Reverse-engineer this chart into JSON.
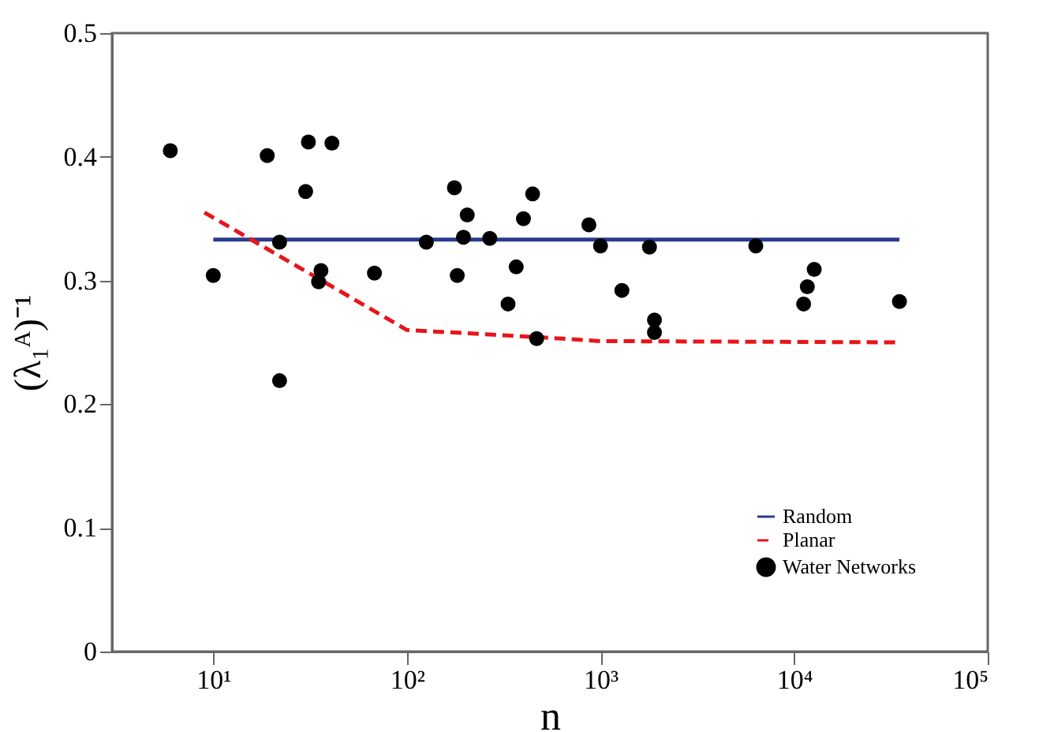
{
  "chart_data": {
    "type": "scatter",
    "xlabel": "n",
    "ylabel": "(λ₁ᴬ)⁻¹",
    "log": "x",
    "grid": false,
    "legend": "bottom right",
    "xlim": [
      3,
      100000
    ],
    "xticks": [
      {
        "value": 10,
        "label": "10¹"
      },
      {
        "value": 100,
        "label": "10²"
      },
      {
        "value": 1000,
        "label": "10³"
      },
      {
        "value": 10000,
        "label": "10⁴"
      },
      {
        "value": 100000,
        "label": "10⁵"
      }
    ],
    "ylim": [
      0,
      0.5
    ],
    "yticks": [
      0,
      0.1,
      0.2,
      0.3,
      0.4,
      0.5
    ],
    "series": [
      {
        "name": "Random",
        "type": "line",
        "line_style": "solid",
        "marker": "none",
        "color": "#2b3a8f",
        "x": [
          10,
          35000
        ],
        "values": [
          0.333,
          0.333
        ]
      },
      {
        "name": "Planar",
        "type": "line",
        "line_style": "dashed",
        "marker": "none",
        "color": "#e8141a",
        "x": [
          9,
          100,
          500,
          1000,
          35000
        ],
        "values": [
          0.355,
          0.26,
          0.254,
          0.251,
          0.25
        ]
      },
      {
        "name": "Water Networks",
        "type": "scatter",
        "marker": "circle",
        "color": "#000000",
        "x": [
          6,
          10,
          19,
          22,
          22,
          31,
          30,
          41,
          36,
          35,
          68,
          126,
          176,
          182,
          196,
          205,
          268,
          400,
          446,
          367,
          333,
          468,
          871,
          1000,
          1290,
          1790,
          1900,
          1900,
          6340,
          11200,
          11700,
          12700,
          35000
        ],
        "values": [
          0.405,
          0.304,
          0.401,
          0.331,
          0.219,
          0.412,
          0.372,
          0.411,
          0.308,
          0.299,
          0.306,
          0.331,
          0.375,
          0.304,
          0.335,
          0.353,
          0.334,
          0.35,
          0.37,
          0.311,
          0.281,
          0.253,
          0.345,
          0.328,
          0.292,
          0.327,
          0.268,
          0.258,
          0.328,
          0.281,
          0.295,
          0.309,
          0.283
        ]
      }
    ]
  }
}
